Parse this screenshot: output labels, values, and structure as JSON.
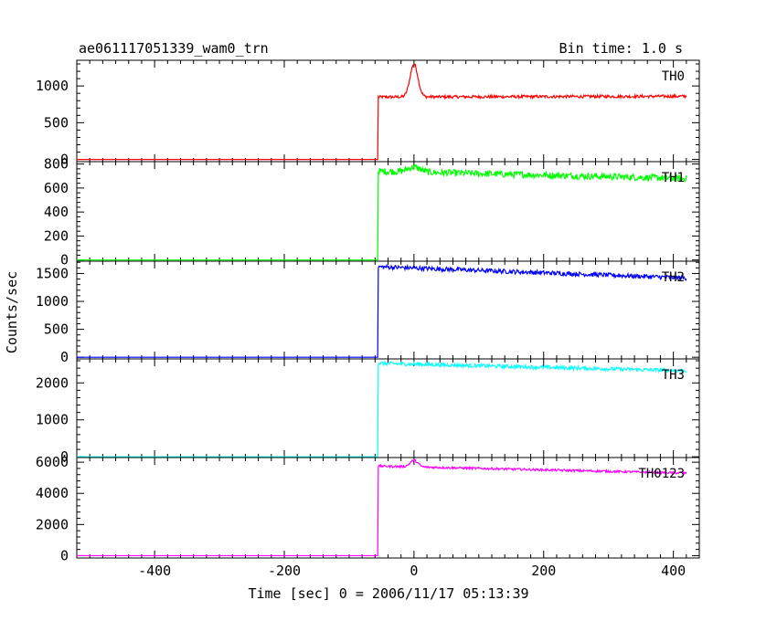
{
  "chart_data": {
    "type": "line",
    "title": "ae061117051339_wam0_trn",
    "subtitle": "Bin time: 1.0 s",
    "xlabel": "Time [sec] 0 = 2006/11/17 05:13:39",
    "ylabel": "Counts/sec",
    "xlim": [
      -520,
      440
    ],
    "x_ticks": [
      -400,
      -200,
      0,
      200,
      400
    ],
    "panels": [
      {
        "name": "TH0",
        "color": "#ff0000",
        "ylim": [
          -30,
          1350
        ],
        "y_ticks": [
          0,
          500,
          1000
        ],
        "baseline": 0,
        "rise_time": -55,
        "start_level": 850,
        "end_level": 860,
        "noise": 20,
        "bump": {
          "t": 0,
          "height": 450,
          "width": 6
        }
      },
      {
        "name": "TH1",
        "color": "#00ff00",
        "ylim": [
          -10,
          820
        ],
        "y_ticks": [
          0,
          200,
          400,
          600,
          800
        ],
        "baseline": 0,
        "rise_time": -55,
        "start_level": 740,
        "end_level": 680,
        "noise": 28,
        "bump": {
          "t": 0,
          "height": 40,
          "width": 10
        }
      },
      {
        "name": "TH2",
        "color": "#0000ff",
        "ylim": [
          -30,
          1720
        ],
        "y_ticks": [
          0,
          500,
          1000,
          1500
        ],
        "baseline": 0,
        "rise_time": -55,
        "start_level": 1620,
        "end_level": 1420,
        "noise": 40,
        "bump": {
          "t": 0,
          "height": 0,
          "width": 10
        }
      },
      {
        "name": "TH3",
        "color": "#00ffff",
        "ylim": [
          -20,
          2650
        ],
        "y_ticks": [
          0,
          1000,
          2000
        ],
        "baseline": 0,
        "rise_time": -55,
        "start_level": 2530,
        "end_level": 2330,
        "noise": 50,
        "bump": {
          "t": 0,
          "height": 0,
          "width": 10
        }
      },
      {
        "name": "TH0123",
        "color": "#ff00ff",
        "ylim": [
          -150,
          6300
        ],
        "y_ticks": [
          0,
          2000,
          4000,
          6000
        ],
        "baseline": 0,
        "rise_time": -55,
        "start_level": 5750,
        "end_level": 5300,
        "noise": 70,
        "bump": {
          "t": 0,
          "height": 420,
          "width": 6
        }
      }
    ]
  }
}
